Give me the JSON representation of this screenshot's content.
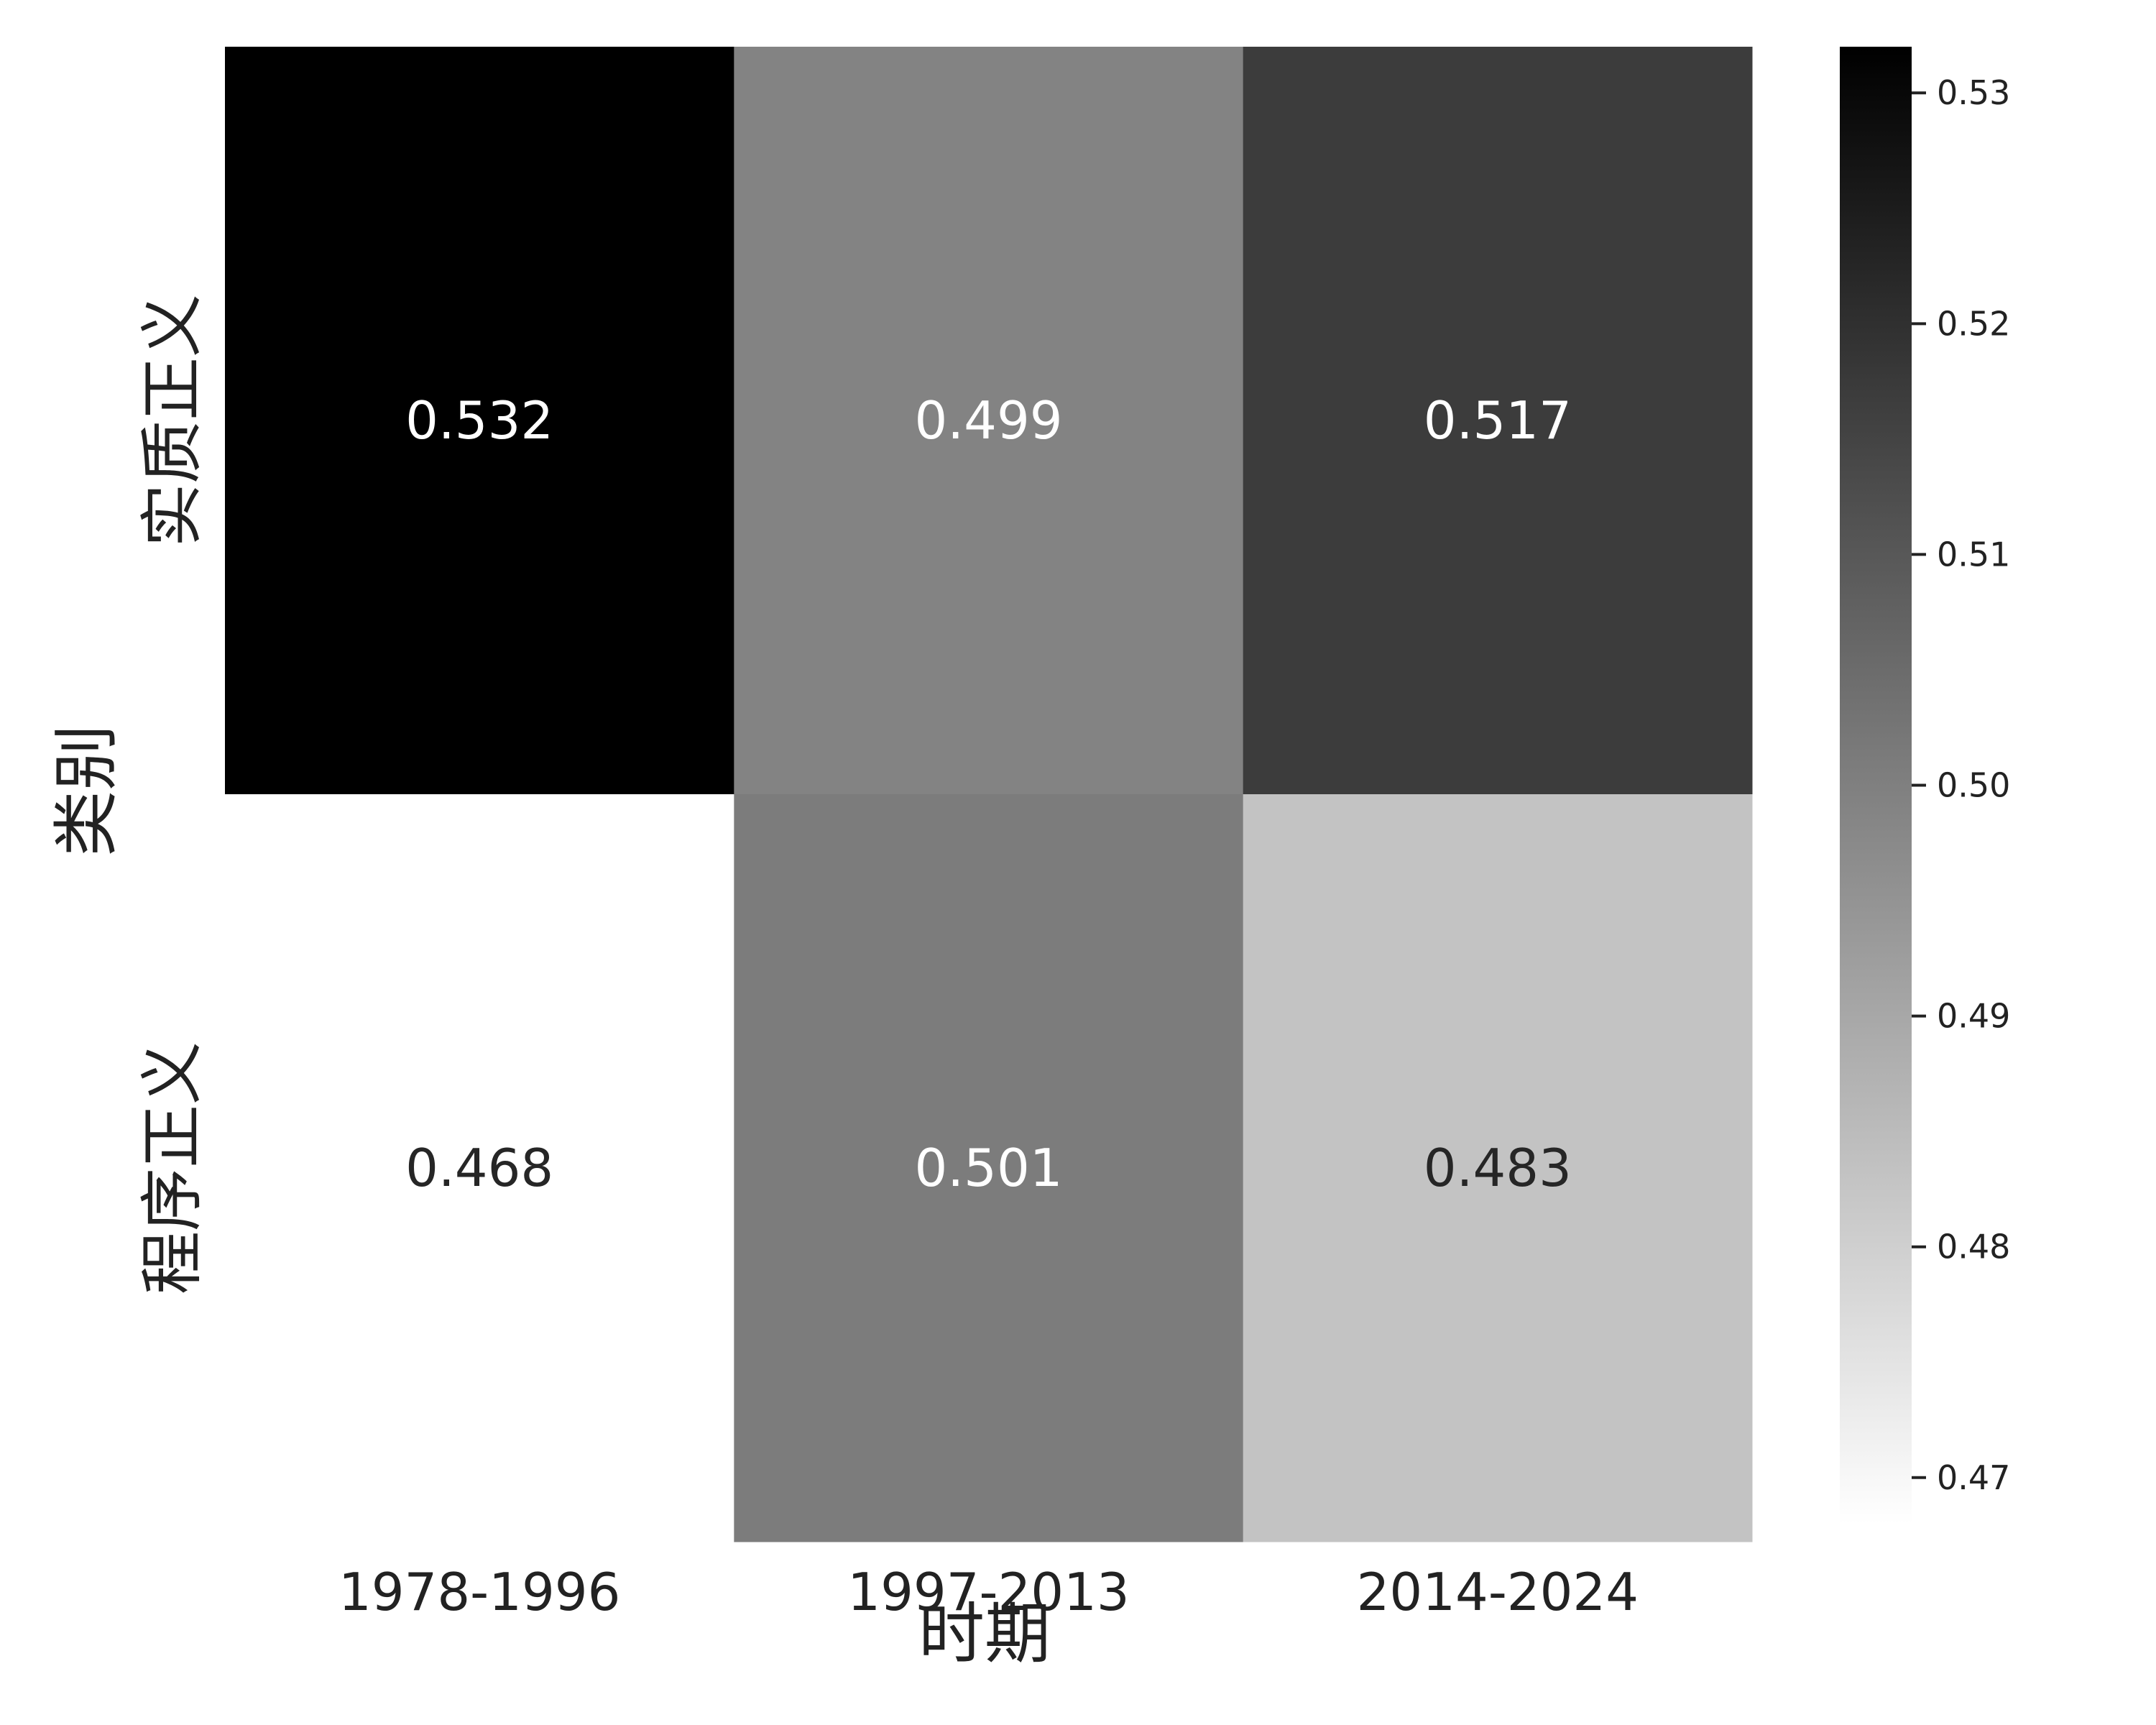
{
  "chart_data": {
    "type": "heatmap",
    "title": "",
    "xlabel": "时期",
    "ylabel": "类别",
    "x_categories": [
      "1978-1996",
      "1997-2013",
      "2014-2024"
    ],
    "y_categories": [
      "实质正义",
      "程序正义"
    ],
    "values": [
      [
        0.532,
        0.499,
        0.517
      ],
      [
        0.468,
        0.501,
        0.483
      ]
    ],
    "cell_labels": [
      [
        "0.532",
        "0.499",
        "0.517"
      ],
      [
        "0.468",
        "0.501",
        "0.483"
      ]
    ],
    "colormap": {
      "name": "Greys",
      "vmin": 0.468,
      "vmax": 0.532,
      "low_color": "#ffffff",
      "high_color": "#000000"
    },
    "colorbar": {
      "ticks": [
        0.47,
        0.48,
        0.49,
        0.5,
        0.51,
        0.52,
        0.53
      ],
      "tick_labels": [
        "0.47",
        "0.48",
        "0.49",
        "0.50",
        "0.51",
        "0.52",
        "0.53"
      ]
    },
    "grid": false,
    "legend": "colorbar-right"
  }
}
